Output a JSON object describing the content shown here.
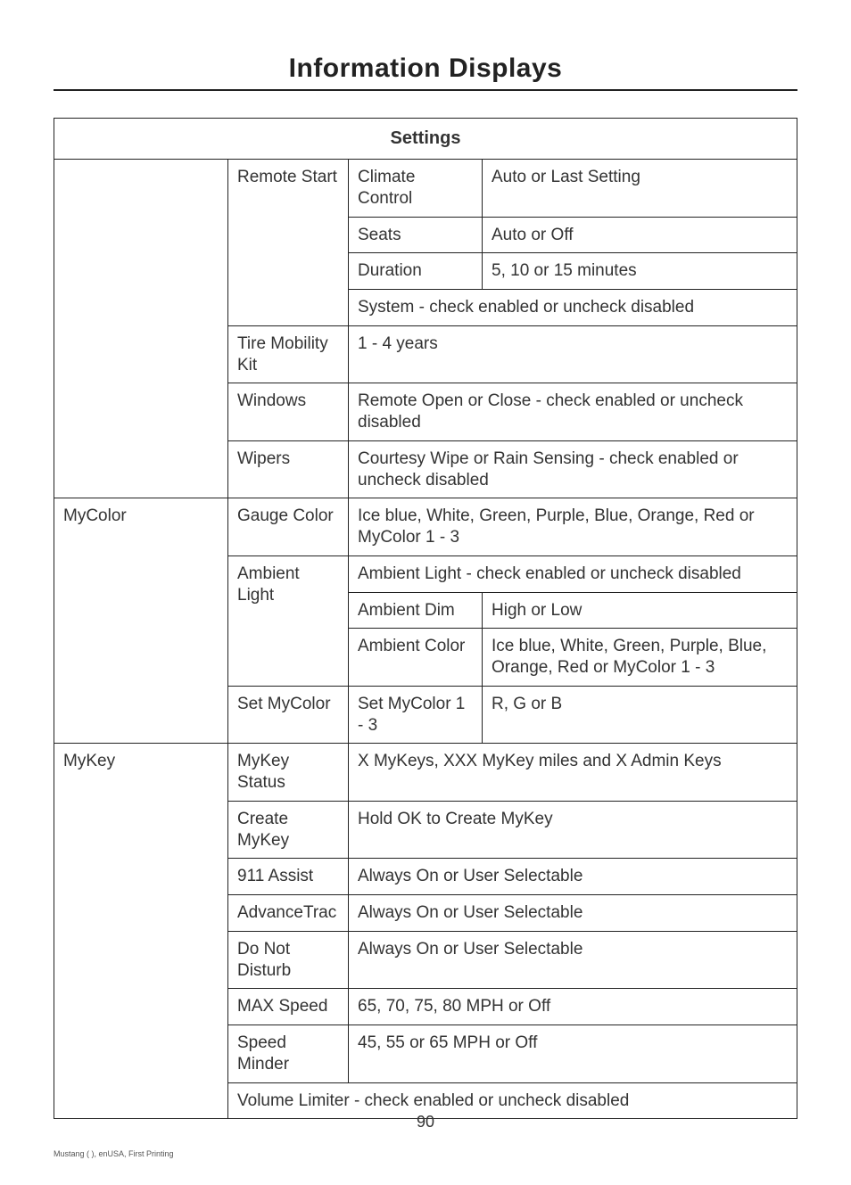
{
  "page": {
    "title": "Information Displays",
    "number": "90",
    "footer": "Mustang ( ), enUSA, First Printing"
  },
  "table": {
    "header": "Settings",
    "rows": {
      "remote_start": {
        "label": "Remote Start",
        "climate_control": {
          "name": "Climate Control",
          "value": "Auto or Last Setting"
        },
        "seats": {
          "name": "Seats",
          "value": "Auto or Off"
        },
        "duration": {
          "name": "Duration",
          "value": "5, 10 or 15 minutes"
        },
        "system": "System - check enabled or uncheck disabled"
      },
      "tire_mobility": {
        "label": "Tire Mobility Kit",
        "value": "1 - 4 years"
      },
      "windows": {
        "label": "Windows",
        "value": "Remote Open or Close - check enabled or uncheck disabled"
      },
      "wipers": {
        "label": "Wipers",
        "value": "Courtesy Wipe or Rain Sensing - check enabled or uncheck disabled"
      },
      "mycolor": {
        "label": "MyColor",
        "gauge_color": {
          "name": "Gauge Color",
          "value": "Ice blue, White, Green, Purple, Blue, Orange, Red or MyColor 1 - 3"
        },
        "ambient_light": {
          "name": "Ambient Light",
          "ambient_light_row": "Ambient Light - check enabled or uncheck disabled",
          "ambient_dim": {
            "name": "Ambient Dim",
            "value": "High or Low"
          },
          "ambient_color": {
            "name": "Ambient Color",
            "value": "Ice blue, White, Green, Purple, Blue, Orange, Red or MyColor 1 - 3"
          }
        },
        "set_mycolor": {
          "name": "Set MyColor",
          "sub": "Set MyColor 1 - 3",
          "value": "R, G or B"
        }
      },
      "mykey": {
        "label": "MyKey",
        "status": {
          "name": "MyKey Status",
          "value": "X MyKeys, XXX MyKey miles and X Admin Keys"
        },
        "create": {
          "name": "Create MyKey",
          "value": "Hold OK to Create MyKey"
        },
        "assist911": {
          "name": "911 Assist",
          "value": "Always On or User Selectable"
        },
        "advancetrac": {
          "name": "AdvanceTrac",
          "value": "Always On or User Selectable"
        },
        "dnd": {
          "name": "Do Not Disturb",
          "value": "Always On or User Selectable"
        },
        "maxspeed": {
          "name": "MAX Speed",
          "value": "65, 70, 75, 80 MPH or Off"
        },
        "speedminder": {
          "name": "Speed Minder",
          "value": "45, 55 or 65 MPH or Off"
        },
        "volume": "Volume Limiter - check enabled or uncheck disabled"
      }
    }
  }
}
